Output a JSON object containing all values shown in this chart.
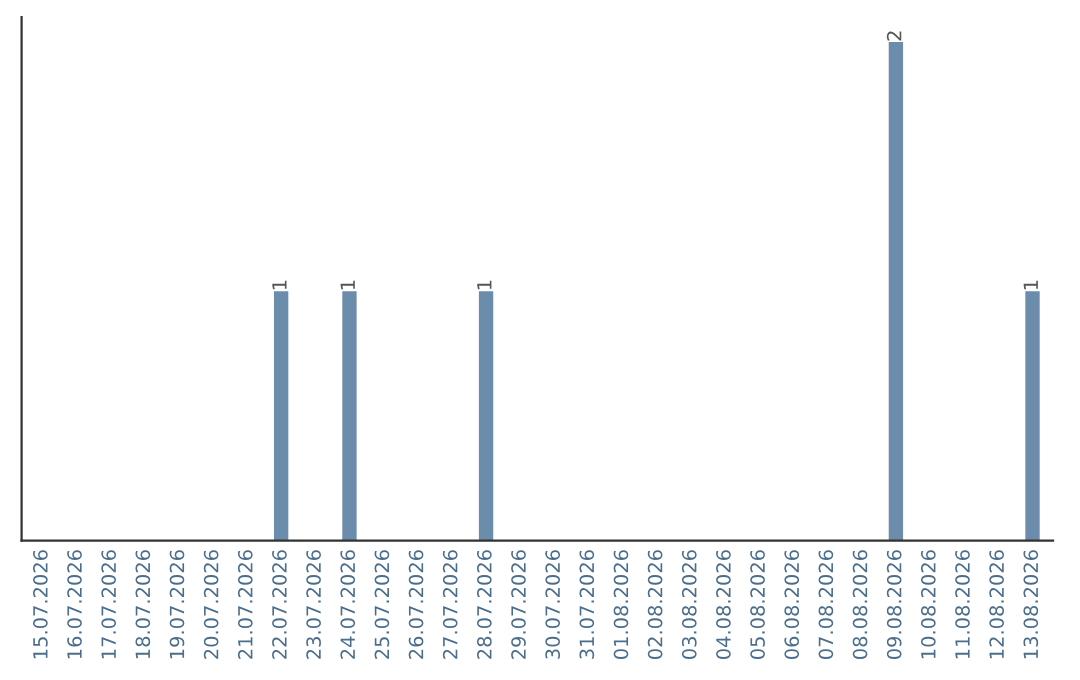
{
  "chart_data": {
    "type": "bar",
    "categories": [
      "15.07.2026",
      "16.07.2026",
      "17.07.2026",
      "18.07.2026",
      "19.07.2026",
      "20.07.2026",
      "21.07.2026",
      "22.07.2026",
      "23.07.2026",
      "24.07.2026",
      "25.07.2026",
      "26.07.2026",
      "27.07.2026",
      "28.07.2026",
      "29.07.2026",
      "30.07.2026",
      "31.07.2026",
      "01.08.2026",
      "02.08.2026",
      "03.08.2026",
      "04.08.2026",
      "05.08.2026",
      "06.08.2026",
      "07.08.2026",
      "08.08.2026",
      "09.08.2026",
      "10.08.2026",
      "11.08.2026",
      "12.08.2026",
      "13.08.2026"
    ],
    "values": [
      0,
      0,
      0,
      0,
      0,
      0,
      0,
      1,
      0,
      1,
      0,
      0,
      0,
      1,
      0,
      0,
      0,
      0,
      0,
      0,
      0,
      0,
      0,
      0,
      0,
      2,
      0,
      0,
      0,
      1
    ],
    "value_labels": [
      null,
      null,
      null,
      null,
      null,
      null,
      null,
      "1",
      null,
      "1",
      null,
      null,
      null,
      "1",
      null,
      null,
      null,
      null,
      null,
      null,
      null,
      null,
      null,
      null,
      null,
      "2",
      null,
      null,
      null,
      "1"
    ],
    "color": "#6b8caa",
    "grid": false,
    "legend": false
  }
}
